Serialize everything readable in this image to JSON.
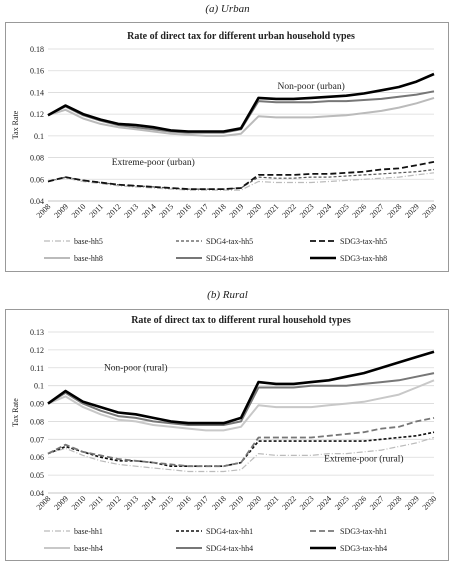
{
  "captions": {
    "urban": "(a) Urban",
    "rural": "(b) Rural"
  },
  "chart_data": [
    {
      "type": "line",
      "title": "Rate of direct tax for different urban  household types",
      "xlabel": "",
      "ylabel": "Tax Rate",
      "ylim": [
        0.04,
        0.18
      ],
      "yticks": [
        "0.04",
        "0.06",
        "0.08",
        "0.1",
        "0.12",
        "0.14",
        "0.16",
        "0.18"
      ],
      "x": [
        "2008",
        "2009",
        "2010",
        "2011",
        "2012",
        "2013",
        "2014",
        "2015",
        "2016",
        "2017",
        "2018",
        "2019",
        "2020",
        "2021",
        "2022",
        "2023",
        "2024",
        "2025",
        "2026",
        "2027",
        "2028",
        "2029",
        "2030"
      ],
      "grid": "horizontal",
      "legend_position": "bottom",
      "annotations": [
        {
          "text": "Non-poor (urban)",
          "x": "2023",
          "y": 0.143
        },
        {
          "text": "Extreme-poor (urban)",
          "x": "2014",
          "y": 0.073
        }
      ],
      "series": [
        {
          "name": "base-hh5",
          "color": "#bbbbbb",
          "dash": "6,2,1,2",
          "width": 1.2,
          "values": [
            0.058,
            0.061,
            0.058,
            0.056,
            0.054,
            0.053,
            0.052,
            0.051,
            0.05,
            0.05,
            0.05,
            0.05,
            0.058,
            0.057,
            0.057,
            0.057,
            0.058,
            0.059,
            0.06,
            0.061,
            0.062,
            0.064,
            0.066
          ]
        },
        {
          "name": "SDG4-tax-hh5",
          "color": "#555555",
          "dash": "3,2",
          "width": 1.2,
          "values": [
            0.058,
            0.062,
            0.059,
            0.057,
            0.055,
            0.054,
            0.053,
            0.052,
            0.051,
            0.051,
            0.051,
            0.052,
            0.062,
            0.061,
            0.061,
            0.062,
            0.062,
            0.063,
            0.064,
            0.065,
            0.066,
            0.067,
            0.069
          ]
        },
        {
          "name": "SDG3-tax-hh5",
          "color": "#111111",
          "dash": "6,3",
          "width": 1.8,
          "values": [
            0.058,
            0.062,
            0.059,
            0.057,
            0.055,
            0.054,
            0.053,
            0.052,
            0.051,
            0.051,
            0.051,
            0.052,
            0.064,
            0.064,
            0.064,
            0.065,
            0.065,
            0.066,
            0.067,
            0.069,
            0.07,
            0.073,
            0.076
          ]
        },
        {
          "name": "base-hh8",
          "color": "#bbbbbb",
          "dash": "",
          "width": 2,
          "values": [
            0.119,
            0.124,
            0.116,
            0.111,
            0.108,
            0.106,
            0.104,
            0.102,
            0.101,
            0.1,
            0.1,
            0.102,
            0.118,
            0.117,
            0.117,
            0.117,
            0.118,
            0.119,
            0.121,
            0.123,
            0.126,
            0.13,
            0.135
          ]
        },
        {
          "name": "SDG4-tax-hh8",
          "color": "#777777",
          "dash": "",
          "width": 2,
          "values": [
            0.119,
            0.127,
            0.119,
            0.114,
            0.11,
            0.108,
            0.106,
            0.104,
            0.103,
            0.103,
            0.103,
            0.106,
            0.132,
            0.131,
            0.131,
            0.131,
            0.132,
            0.132,
            0.133,
            0.134,
            0.136,
            0.138,
            0.141
          ]
        },
        {
          "name": "SDG3-tax-hh8",
          "color": "#000000",
          "dash": "",
          "width": 2.6,
          "values": [
            0.119,
            0.128,
            0.12,
            0.115,
            0.111,
            0.11,
            0.108,
            0.105,
            0.104,
            0.104,
            0.104,
            0.107,
            0.135,
            0.134,
            0.134,
            0.135,
            0.136,
            0.137,
            0.139,
            0.142,
            0.145,
            0.15,
            0.157
          ]
        }
      ]
    },
    {
      "type": "line",
      "title": "Rate of direct tax to different rural  household types",
      "xlabel": "",
      "ylabel": "Tax Rate",
      "ylim": [
        0.04,
        0.13
      ],
      "yticks": [
        "0.04",
        "0.05",
        "0.06",
        "0.07",
        "0.08",
        "0.09",
        "0.1",
        "0.11",
        "0.12",
        "0.13"
      ],
      "x": [
        "2008",
        "2009",
        "2010",
        "2011",
        "2012",
        "2013",
        "2014",
        "2015",
        "2016",
        "2017",
        "2018",
        "2019",
        "2020",
        "2021",
        "2022",
        "2023",
        "2024",
        "2025",
        "2026",
        "2027",
        "2028",
        "2029",
        "2030"
      ],
      "grid": "horizontal",
      "legend_position": "bottom",
      "annotations": [
        {
          "text": "Non-poor (rural)",
          "x": "2013",
          "y": 0.1085
        },
        {
          "text": "Extreme-poor (rural)",
          "x": "2026",
          "y": 0.0575
        }
      ],
      "series": [
        {
          "name": "base-hh1",
          "color": "#bbbbbb",
          "dash": "6,2,1,2",
          "width": 1.2,
          "values": [
            0.062,
            0.065,
            0.061,
            0.058,
            0.056,
            0.055,
            0.054,
            0.053,
            0.052,
            0.052,
            0.052,
            0.053,
            0.062,
            0.061,
            0.061,
            0.061,
            0.062,
            0.062,
            0.063,
            0.064,
            0.066,
            0.068,
            0.071
          ]
        },
        {
          "name": "SDG4-tax-hh1",
          "color": "#111111",
          "dash": "3,2",
          "width": 1.6,
          "values": [
            0.062,
            0.066,
            0.063,
            0.06,
            0.058,
            0.058,
            0.057,
            0.055,
            0.055,
            0.055,
            0.055,
            0.057,
            0.069,
            0.069,
            0.069,
            0.069,
            0.069,
            0.069,
            0.069,
            0.07,
            0.071,
            0.072,
            0.074
          ]
        },
        {
          "name": "SDG3-tax-hh1",
          "color": "#777777",
          "dash": "6,3",
          "width": 1.8,
          "values": [
            0.062,
            0.067,
            0.063,
            0.061,
            0.059,
            0.058,
            0.057,
            0.056,
            0.055,
            0.055,
            0.055,
            0.057,
            0.071,
            0.071,
            0.071,
            0.071,
            0.072,
            0.073,
            0.074,
            0.076,
            0.077,
            0.08,
            0.082
          ]
        },
        {
          "name": "base-hh4",
          "color": "#c8c8c8",
          "dash": "",
          "width": 2,
          "values": [
            0.09,
            0.094,
            0.088,
            0.084,
            0.081,
            0.08,
            0.078,
            0.077,
            0.076,
            0.075,
            0.075,
            0.077,
            0.089,
            0.088,
            0.088,
            0.088,
            0.089,
            0.09,
            0.091,
            0.093,
            0.095,
            0.099,
            0.103
          ]
        },
        {
          "name": "SDG4-tax-hh4",
          "color": "#777777",
          "dash": "",
          "width": 2,
          "values": [
            0.09,
            0.096,
            0.09,
            0.086,
            0.083,
            0.082,
            0.08,
            0.079,
            0.078,
            0.078,
            0.078,
            0.08,
            0.099,
            0.099,
            0.099,
            0.1,
            0.1,
            0.1,
            0.101,
            0.102,
            0.103,
            0.105,
            0.107
          ]
        },
        {
          "name": "SDG3-tax-hh4",
          "color": "#000000",
          "dash": "",
          "width": 2.6,
          "values": [
            0.09,
            0.097,
            0.091,
            0.088,
            0.085,
            0.084,
            0.082,
            0.08,
            0.079,
            0.079,
            0.079,
            0.082,
            0.102,
            0.101,
            0.101,
            0.102,
            0.103,
            0.105,
            0.107,
            0.11,
            0.113,
            0.116,
            0.119
          ]
        }
      ]
    }
  ]
}
